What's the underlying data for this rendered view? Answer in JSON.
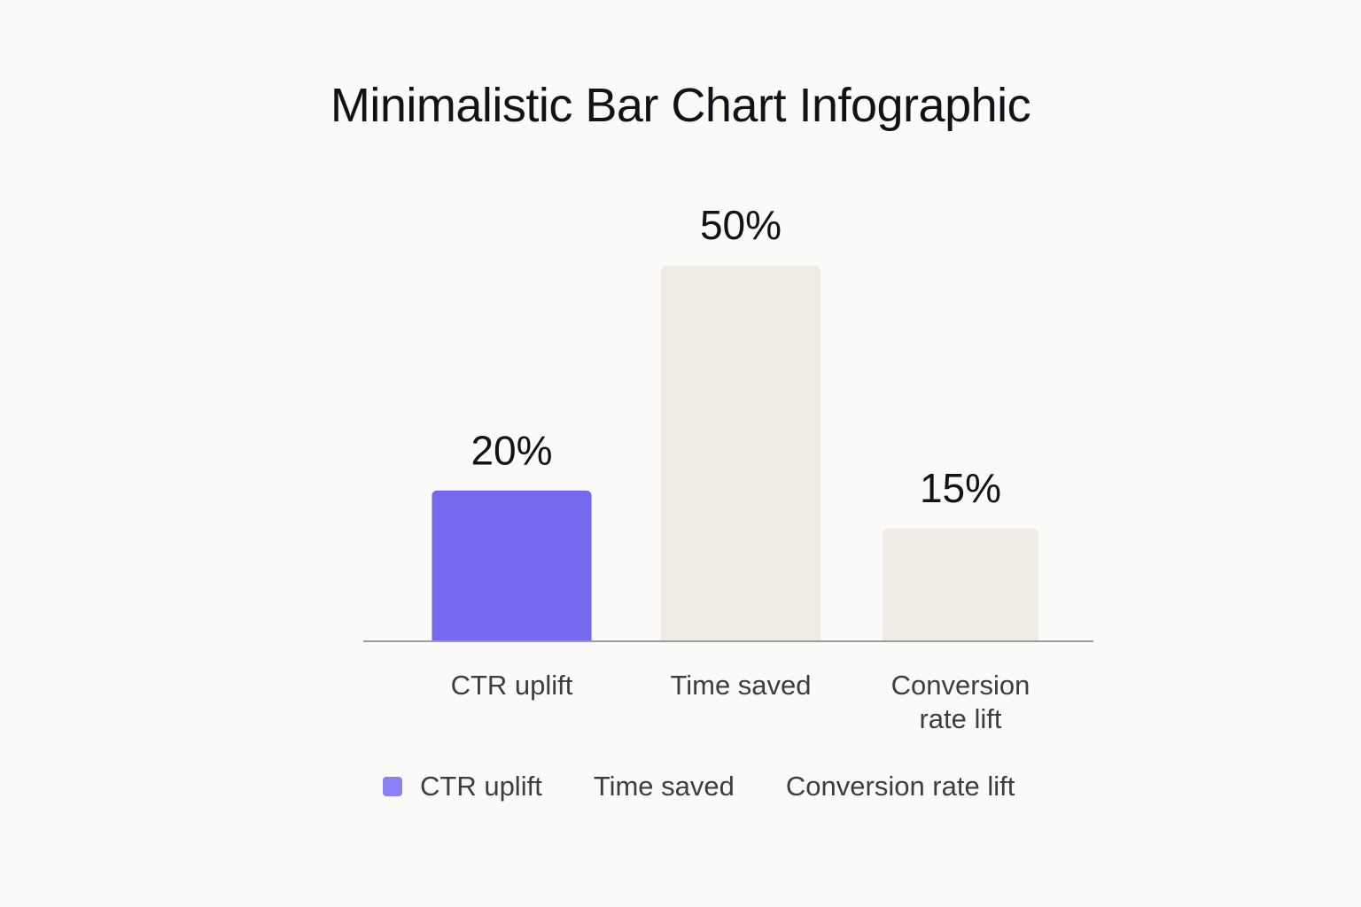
{
  "chart_data": {
    "type": "bar",
    "title": "Minimalistic Bar Chart Infographic",
    "categories": [
      "CTR uplift",
      "Time saved",
      "Conversion rate lift"
    ],
    "category_labels": [
      [
        "CTR uplift"
      ],
      [
        "Time saved"
      ],
      [
        "Conversion",
        "rate lift"
      ]
    ],
    "values": [
      20,
      50,
      15
    ],
    "value_labels": [
      "20%",
      "50%",
      "15%"
    ],
    "ylim": [
      0,
      50
    ],
    "grid": false,
    "legend_placement": "bottom",
    "legend": [
      "CTR uplift",
      "Time saved",
      "Conversion rate lift"
    ],
    "colors": {
      "highlight": "#7569f2",
      "muted": "#efece6",
      "legend_highlight": "#8a7ff5",
      "axis": "#9c9c9c"
    }
  }
}
